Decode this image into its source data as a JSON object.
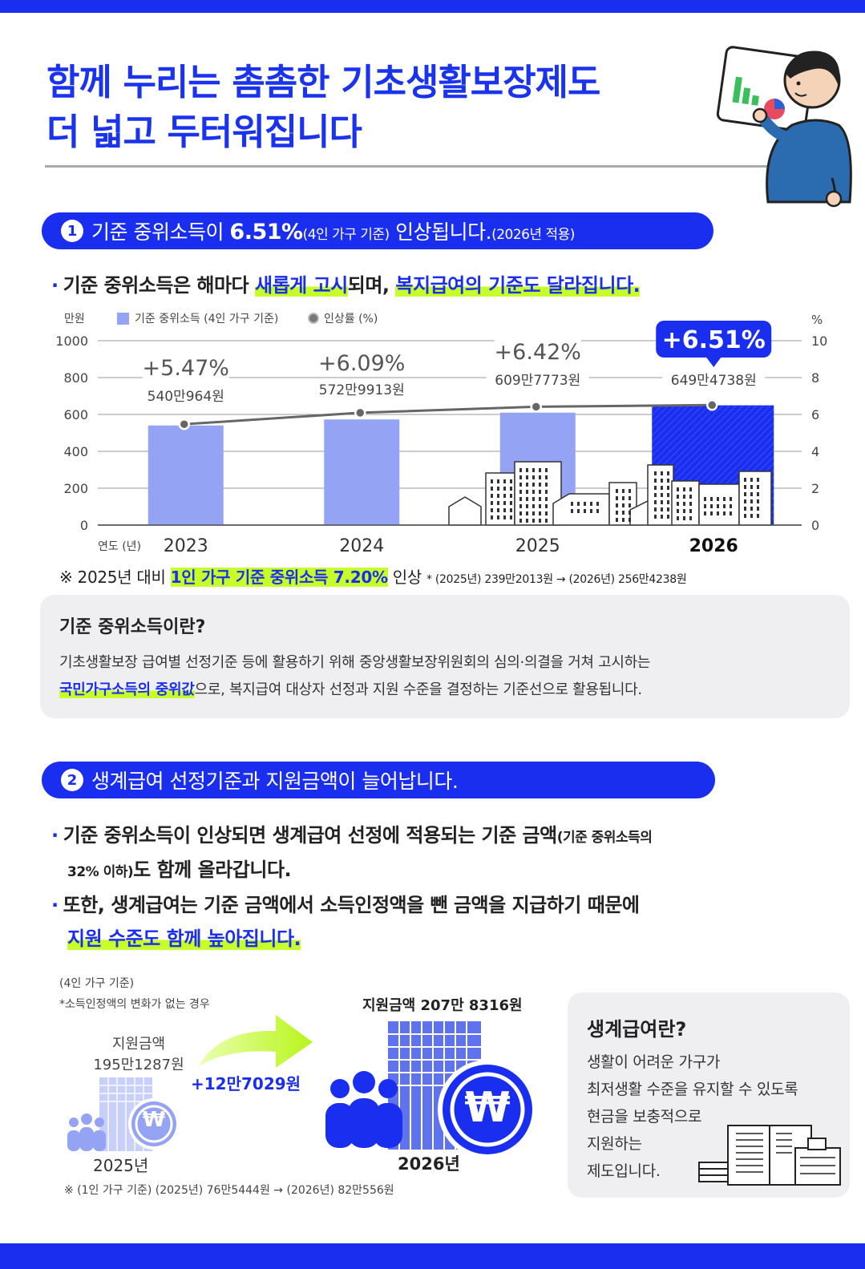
{
  "title": {
    "line1": "함께 누리는 촘촘한 기초생활보장제도",
    "line2": "더 넓고 두터워집니다"
  },
  "section1": {
    "num": "1",
    "head_a": "기준 중위소득이 ",
    "head_b": "6.51%",
    "head_c": "(4인 가구 기준)",
    "head_d": " 인상됩니다.",
    "head_e": "(2026년 적용)",
    "bullet_a": "기준 중위소득은 해마다 ",
    "bullet_b": "새롭게 고시",
    "bullet_c": "되며, ",
    "bullet_d": "복지급여의 기준도 달라집니다.",
    "note_a": "※ 2025년 대비 ",
    "note_b": "1인 가구 기준 중위소득 7.20%",
    "note_c": " 인상",
    "note_d": "* (2025년) 239만2013원 → (2026년) 256만4238원"
  },
  "chart_data": {
    "type": "bar",
    "y_left_unit": "만원",
    "y_right_unit": "%",
    "legend_bar": "기준 중위소득 (4인 가구 기준)",
    "legend_line": "인상률 (%)",
    "x_axis_label": "연도 (년)",
    "categories": [
      "2023",
      "2024",
      "2025",
      "2026"
    ],
    "values": [
      540.0964,
      572.9913,
      609.7773,
      649.4738
    ],
    "value_labels": [
      "540만964원",
      "572만9913원",
      "609만7773원",
      "649만4738원"
    ],
    "rate_labels": [
      "+5.47%",
      "+6.09%",
      "+6.42%",
      "+6.51%"
    ],
    "rates": [
      5.47,
      6.09,
      6.42,
      6.51
    ],
    "y_left_ticks": [
      "0",
      "200",
      "400",
      "600",
      "800",
      "1000"
    ],
    "y_right_ticks": [
      "0",
      "2",
      "4",
      "6",
      "8",
      "10"
    ],
    "ylim_left": [
      0,
      1000
    ],
    "ylim_right": [
      0,
      10
    ],
    "bar_color": "#94a3f4",
    "highlight_color": "#1a2ef0",
    "line_color": "#666666"
  },
  "box1": {
    "heading": "기준 중위소득이란?",
    "line1": "기초생활보장 급여별 선정기준 등에 활용하기 위해 중앙생활보장위원회의 심의·의결을 거쳐 고시하는",
    "line2_hl": "국민가구소득의 중위값",
    "line2_rest": "으로, 복지급여 대상자 선정과 지원 수준을 결정하는 기준선으로 활용됩니다."
  },
  "section2": {
    "num": "2",
    "head": "생계급여 선정기준과 지원금액이 늘어납니다.",
    "b1_a": "기준 중위소득이 인상되면 생계급여 선정에 적용되는 기준 금액",
    "b1_b": "(기준 중위소득의",
    "b1_c": "32% 이하)",
    "b1_d": "도 함께 올라갑니다.",
    "b2_a": "또한, 생계급여는 기준 금액에서 소득인정액을 뺀 금액을 지급하기 때문에",
    "b2_b": "지원 수준도 함께 높아집니다."
  },
  "support": {
    "basis": "(4인 가구 기준)",
    "assume": "*소득인정액의 변화가 없는 경우",
    "label_2025_a": "지원금액",
    "label_2025_b": "195만1287원",
    "year_2025": "2025년",
    "increase": "+12만7029원",
    "label_2026": "지원금액 207만 8316원",
    "year_2026": "2026년",
    "won_symbol": "₩",
    "note": "※ (1인 가구 기준) (2025년) 76만5444원 → (2026년) 82만556원"
  },
  "box2": {
    "heading": "생계급여란?",
    "l1": "생활이 어려운 가구가",
    "l2": "최저생활 수준을 유지할 수 있도록",
    "l3": "현금을 보충적으로",
    "l4": "지원하는",
    "l5": "제도입니다."
  }
}
